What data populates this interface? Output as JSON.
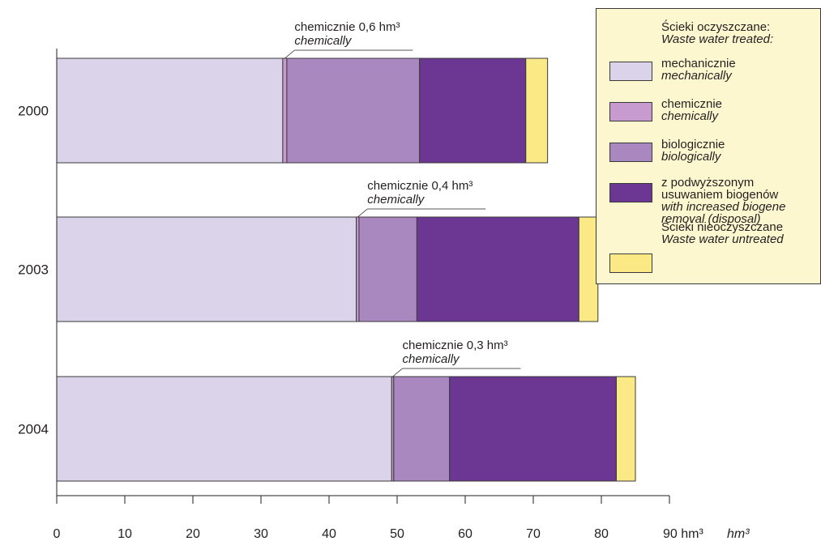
{
  "chart_data": {
    "type": "bar",
    "orientation": "horizontal",
    "stacked": true,
    "categories": [
      "2000",
      "2003",
      "2004"
    ],
    "series": [
      {
        "key": "mech",
        "values": [
          33.2,
          44.0,
          49.2
        ],
        "color": "#dbd3ea"
      },
      {
        "key": "chem",
        "values": [
          0.6,
          0.4,
          0.3
        ],
        "color": "#c79bcf"
      },
      {
        "key": "bio",
        "values": [
          19.5,
          8.5,
          8.2
        ],
        "color": "#a987bf"
      },
      {
        "key": "nutr",
        "values": [
          15.6,
          23.8,
          24.5
        ],
        "color": "#6b3793"
      },
      {
        "key": "untr",
        "values": [
          3.2,
          2.8,
          2.8
        ],
        "color": "#fbe985"
      }
    ],
    "xlim": [
      0,
      90
    ],
    "xticks": [
      0,
      10,
      20,
      30,
      40,
      50,
      60,
      70,
      80,
      90
    ],
    "xtick_labels": [
      "0",
      "10",
      "20",
      "30",
      "40",
      "50",
      "60",
      "70",
      "80",
      "90 hm³"
    ],
    "x_unit_italic": "hm³",
    "annotations": [
      {
        "pl": "chemicznie 0,6 hm³",
        "en": "chemically"
      },
      {
        "pl": "chemicznie 0,4 hm³",
        "en": "chemically"
      },
      {
        "pl": "chemicznie 0,3 hm³",
        "en": "chemically"
      }
    ],
    "grid": false
  },
  "legend": {
    "treated_pl": "Ścieki oczyszczane:",
    "treated_en": "Waste water treated:",
    "items": [
      {
        "lines_pl": [
          "mechanicznie"
        ],
        "lines_en": [
          "mechanically"
        ],
        "color": "#dbd3ea"
      },
      {
        "lines_pl": [
          "chemicznie"
        ],
        "lines_en": [
          "chemically"
        ],
        "color": "#c79bcf"
      },
      {
        "lines_pl": [
          "biologicznie"
        ],
        "lines_en": [
          "biologically"
        ],
        "color": "#a987bf"
      },
      {
        "lines_pl": [
          "z podwyższonym",
          "usuwaniem biogenów"
        ],
        "lines_en": [
          "with increased biogene",
          "removal (disposal)"
        ],
        "color": "#6b3793"
      }
    ],
    "untreated_pl": "Ścieki nieoczyszczane",
    "untreated_en": "Waste water untreated",
    "untreated_color": "#fbe985"
  }
}
